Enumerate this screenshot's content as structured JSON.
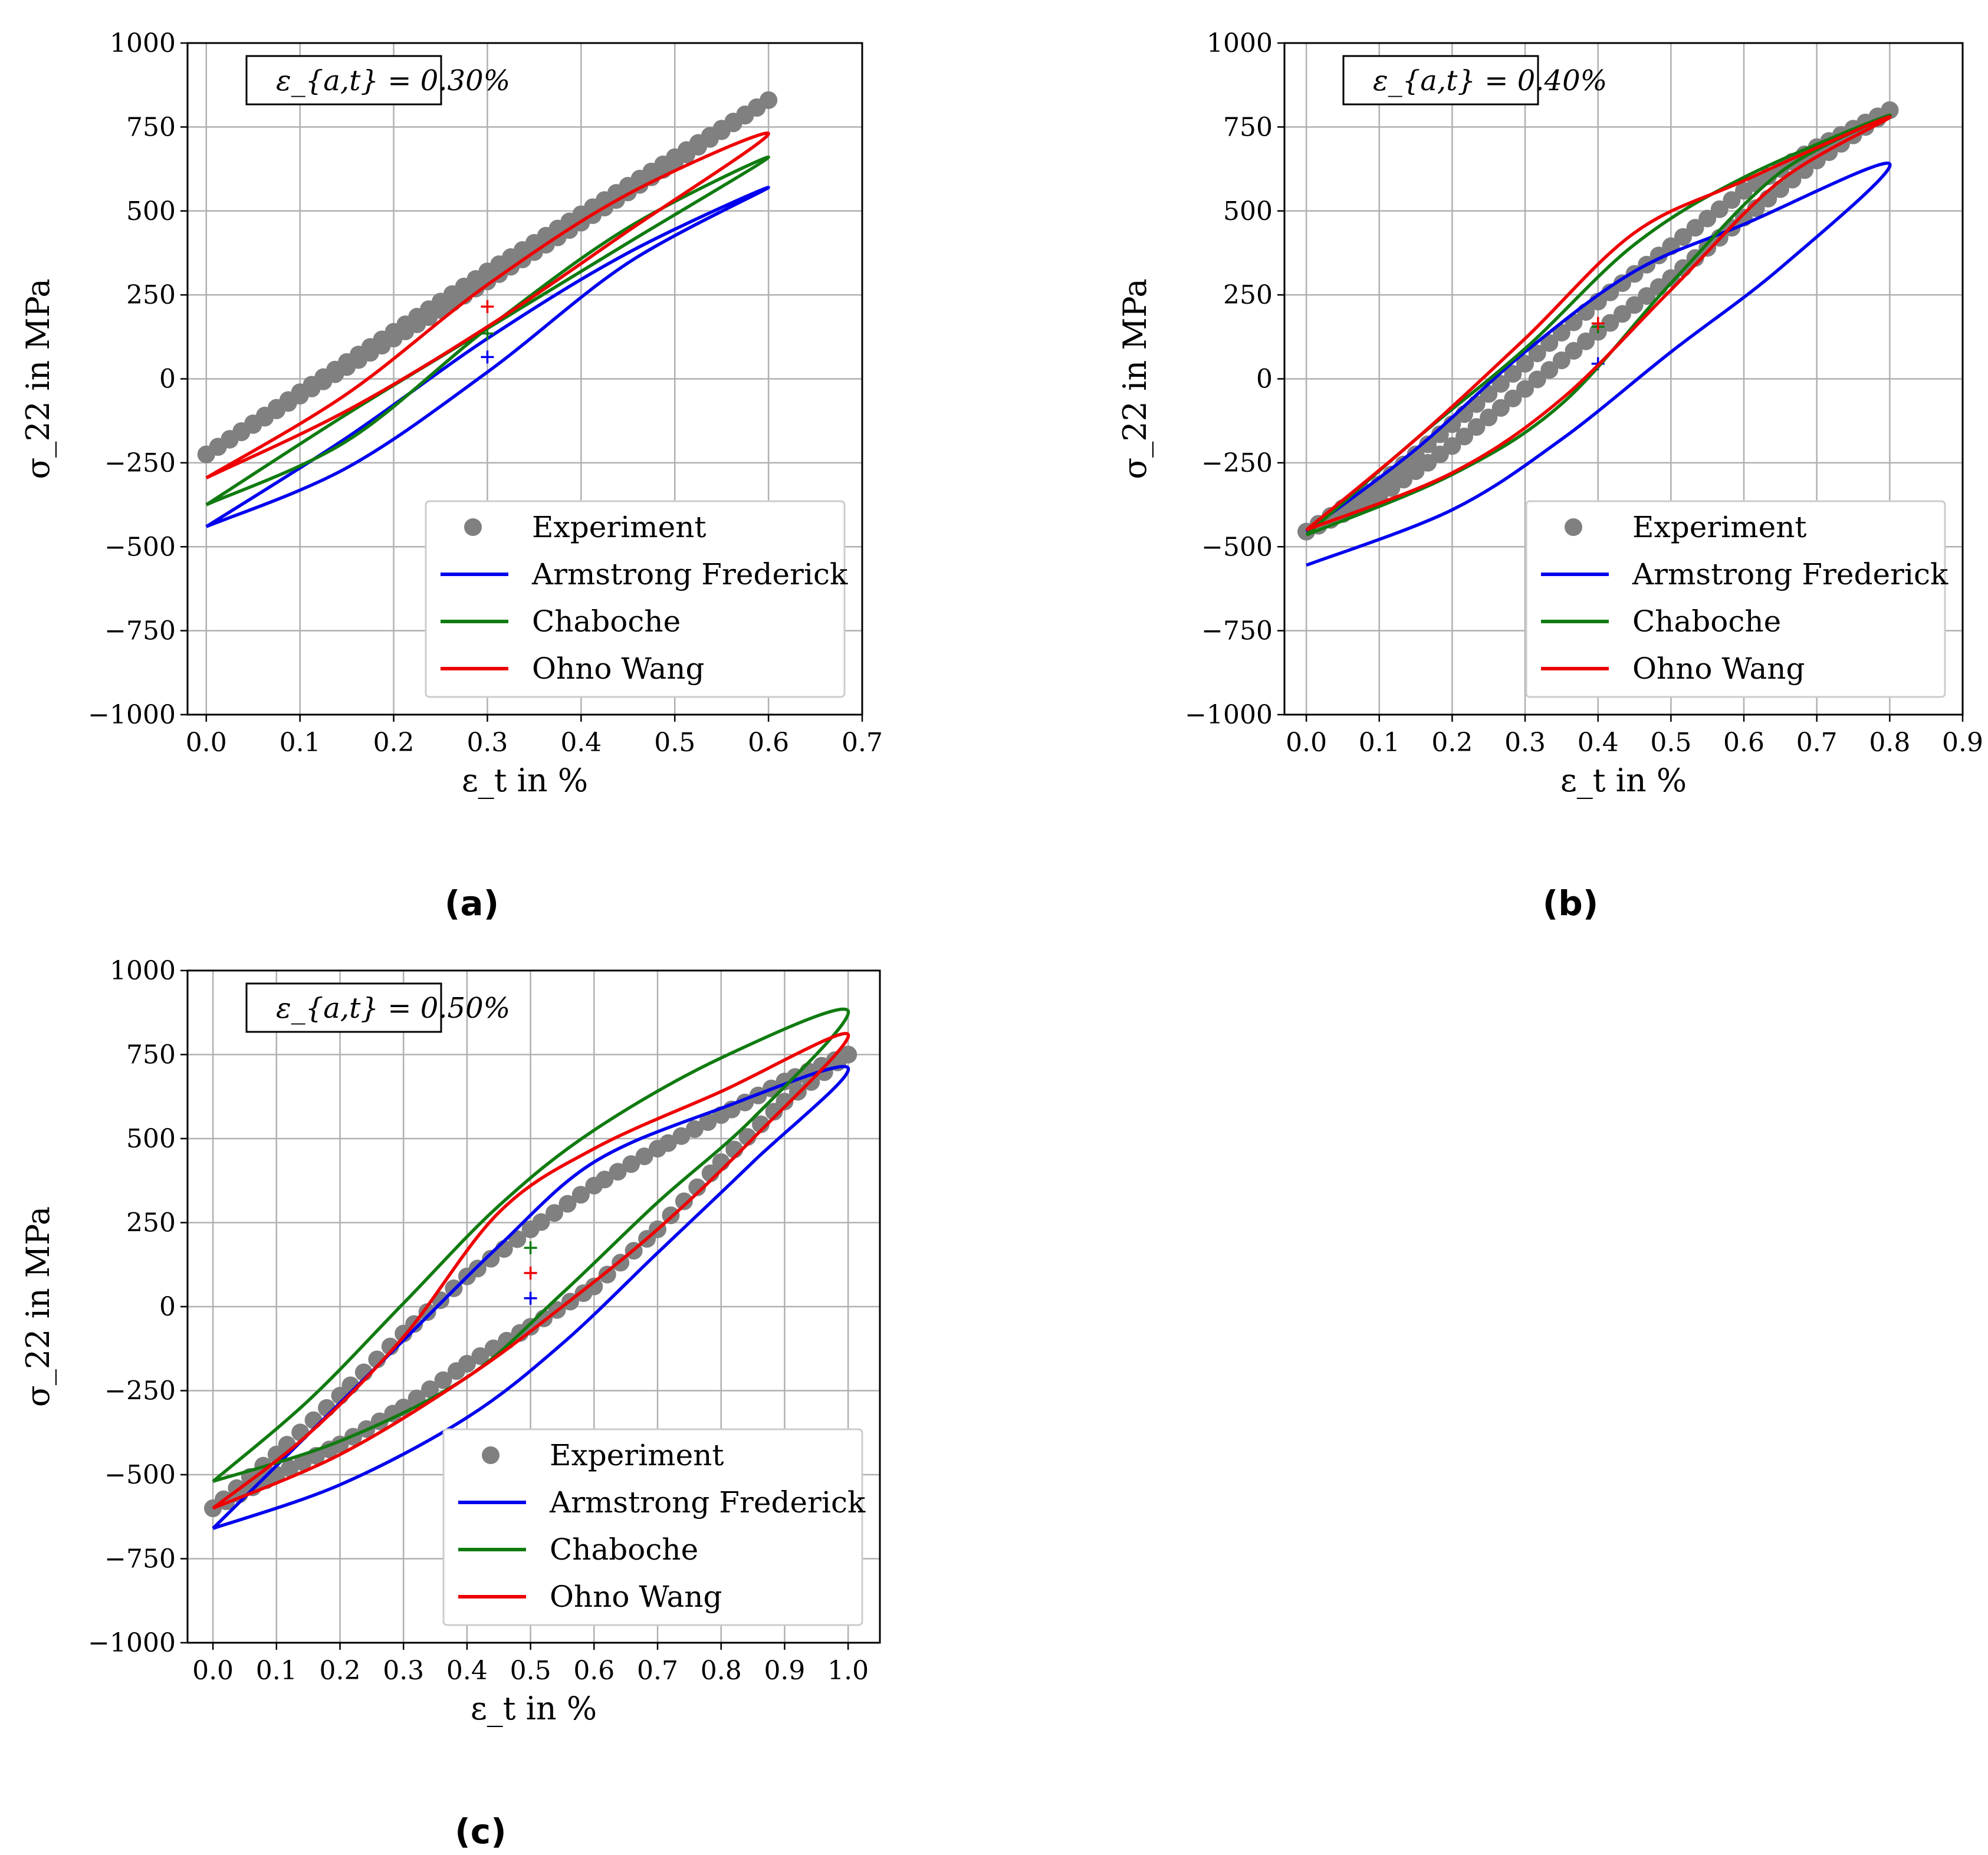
{
  "figure": {
    "legend_labels": [
      "Experiment",
      "Armstrong Frederick",
      "Chaboche",
      "Ohno Wang"
    ],
    "colors": {
      "experiment": "#808080",
      "armstrong_frederick": "#0000ee",
      "chaboche": "#107b10",
      "ohno_wang": "#ee0000",
      "grid": "#b0b0b0"
    }
  },
  "chart_data": [
    {
      "type": "line",
      "panel": "(a)",
      "caption": "(a)",
      "annotation": "ε_{a,t} = 0.30%",
      "xlabel": "ε_t in %",
      "ylabel": "σ_22 in MPa",
      "xlim": [
        -0.02,
        0.7
      ],
      "ylim": [
        -1000,
        1000
      ],
      "xticks": [
        "0.0",
        "0.1",
        "0.2",
        "0.3",
        "0.4",
        "0.5",
        "0.6",
        "0.7"
      ],
      "yticks": [
        "−1000",
        "−750",
        "−500",
        "−250",
        "0",
        "250",
        "500",
        "750",
        "1000"
      ],
      "legend_position": "lower right",
      "series": [
        {
          "name": "Experiment",
          "kind": "scatter",
          "loading_x": [
            0.0,
            0.1,
            0.2,
            0.3,
            0.4,
            0.5,
            0.6
          ],
          "loading_y": [
            -225,
            -50,
            120,
            290,
            465,
            645,
            830
          ],
          "unloading_x": [
            0.6,
            0.5,
            0.4,
            0.3,
            0.2,
            0.1,
            0.0
          ],
          "unloading_y": [
            830,
            660,
            490,
            320,
            140,
            -40,
            -225
          ]
        },
        {
          "name": "Armstrong Frederick",
          "kind": "loop",
          "x": [
            0.0,
            0.15,
            0.3,
            0.45,
            0.6,
            0.45,
            0.3,
            0.15,
            0.0
          ],
          "y": [
            -440,
            -265,
            20,
            345,
            570,
            375,
            120,
            -175,
            -440
          ],
          "midpoint_marker": {
            "x": 0.3,
            "y": 65
          }
        },
        {
          "name": "Chaboche",
          "kind": "loop",
          "x": [
            0.0,
            0.15,
            0.3,
            0.45,
            0.6,
            0.45,
            0.3,
            0.15,
            0.0
          ],
          "y": [
            -375,
            -105,
            150,
            405,
            660,
            450,
            150,
            -185,
            -375
          ],
          "midpoint_marker": {
            "x": 0.3,
            "y": 135
          }
        },
        {
          "name": "Ohno Wang",
          "kind": "loop",
          "x": [
            0.0,
            0.15,
            0.3,
            0.45,
            0.6,
            0.45,
            0.3,
            0.15,
            0.0
          ],
          "y": [
            -295,
            -95,
            155,
            440,
            730,
            550,
            280,
            -45,
            -295
          ],
          "midpoint_marker": {
            "x": 0.3,
            "y": 215
          }
        }
      ]
    },
    {
      "type": "line",
      "panel": "(b)",
      "caption": "(b)",
      "annotation": "ε_{a,t} = 0.40%",
      "xlabel": "ε_t in %",
      "ylabel": "σ_22 in MPa",
      "xlim": [
        -0.03,
        0.9
      ],
      "ylim": [
        -1000,
        1000
      ],
      "xticks": [
        "0.0",
        "0.1",
        "0.2",
        "0.3",
        "0.4",
        "0.5",
        "0.6",
        "0.7",
        "0.8",
        "0.9"
      ],
      "yticks": [
        "−1000",
        "−750",
        "−500",
        "−250",
        "0",
        "250",
        "500",
        "750",
        "1000"
      ],
      "legend_position": "lower right",
      "series": [
        {
          "name": "Experiment",
          "kind": "scatter",
          "loading_x": [
            0.0,
            0.1,
            0.2,
            0.3,
            0.4,
            0.5,
            0.6,
            0.7,
            0.8
          ],
          "loading_y": [
            -455,
            -350,
            -200,
            -30,
            140,
            300,
            480,
            650,
            800
          ],
          "unloading_x": [
            0.8,
            0.7,
            0.6,
            0.5,
            0.4,
            0.3,
            0.2,
            0.1,
            0.0
          ],
          "unloading_y": [
            800,
            690,
            560,
            395,
            230,
            45,
            -135,
            -315,
            -455
          ]
        },
        {
          "name": "Armstrong Frederick",
          "kind": "loop",
          "x": [
            0.0,
            0.2,
            0.35,
            0.5,
            0.65,
            0.8,
            0.6,
            0.45,
            0.3,
            0.15,
            0.0
          ],
          "y": [
            -555,
            -390,
            -180,
            80,
            330,
            640,
            460,
            320,
            80,
            -210,
            -455
          ],
          "midpoint_marker": {
            "x": 0.4,
            "y": 45
          }
        },
        {
          "name": "Chaboche",
          "kind": "loop",
          "x": [
            0.0,
            0.2,
            0.35,
            0.5,
            0.65,
            0.8,
            0.6,
            0.45,
            0.3,
            0.15,
            0.0
          ],
          "y": [
            -465,
            -285,
            -75,
            285,
            615,
            785,
            600,
            400,
            90,
            -180,
            -465
          ],
          "midpoint_marker": {
            "x": 0.4,
            "y": 155
          }
        },
        {
          "name": "Ohno Wang",
          "kind": "loop",
          "x": [
            0.0,
            0.2,
            0.35,
            0.5,
            0.65,
            0.8,
            0.6,
            0.45,
            0.3,
            0.15,
            0.0
          ],
          "y": [
            -450,
            -280,
            -60,
            265,
            590,
            780,
            590,
            435,
            120,
            -180,
            -450
          ],
          "midpoint_marker": {
            "x": 0.4,
            "y": 165
          }
        }
      ]
    },
    {
      "type": "line",
      "panel": "(c)",
      "caption": "(c)",
      "annotation": "ε_{a,t} = 0.50%",
      "xlabel": "ε_t in %",
      "ylabel": "σ_22 in MPa",
      "xlim": [
        -0.04,
        1.05
      ],
      "ylim": [
        -1000,
        1000
      ],
      "xticks": [
        "0.0",
        "0.1",
        "0.2",
        "0.3",
        "0.4",
        "0.5",
        "0.6",
        "0.7",
        "0.8",
        "0.9",
        "1.0"
      ],
      "yticks": [
        "−1000",
        "−750",
        "−500",
        "−250",
        "0",
        "250",
        "500",
        "750",
        "1000"
      ],
      "legend_position": "lower right",
      "series": [
        {
          "name": "Experiment",
          "kind": "scatter",
          "loading_x": [
            0.0,
            0.1,
            0.2,
            0.3,
            0.4,
            0.5,
            0.6,
            0.7,
            0.8,
            0.9,
            1.0
          ],
          "loading_y": [
            -600,
            -500,
            -410,
            -300,
            -170,
            -60,
            60,
            230,
            430,
            610,
            750
          ],
          "unloading_x": [
            1.0,
            0.9,
            0.8,
            0.7,
            0.6,
            0.5,
            0.4,
            0.3,
            0.2,
            0.1,
            0.0
          ],
          "unloading_y": [
            750,
            670,
            570,
            470,
            360,
            230,
            90,
            -80,
            -265,
            -440,
            -600
          ]
        },
        {
          "name": "Armstrong Frederick",
          "kind": "loop",
          "x": [
            0.0,
            0.2,
            0.4,
            0.55,
            0.7,
            0.85,
            1.0,
            0.8,
            0.6,
            0.45,
            0.3,
            0.15,
            0.0
          ],
          "y": [
            -660,
            -530,
            -330,
            -110,
            160,
            430,
            710,
            590,
            430,
            180,
            -100,
            -380,
            -660
          ],
          "midpoint_marker": {
            "x": 0.5,
            "y": 25
          }
        },
        {
          "name": "Chaboche",
          "kind": "loop",
          "x": [
            0.0,
            0.2,
            0.4,
            0.55,
            0.7,
            0.85,
            1.0,
            0.8,
            0.6,
            0.45,
            0.3,
            0.15,
            0.0
          ],
          "y": [
            -520,
            -400,
            -210,
            40,
            310,
            560,
            880,
            740,
            525,
            300,
            10,
            -280,
            -520
          ],
          "midpoint_marker": {
            "x": 0.5,
            "y": 175
          }
        },
        {
          "name": "Ohno Wang",
          "kind": "loop",
          "x": [
            0.0,
            0.2,
            0.4,
            0.55,
            0.7,
            0.85,
            1.0,
            0.8,
            0.6,
            0.45,
            0.3,
            0.15,
            0.0
          ],
          "y": [
            -600,
            -440,
            -210,
            0,
            230,
            500,
            810,
            640,
            470,
            280,
            -90,
            -380,
            -600
          ],
          "midpoint_marker": {
            "x": 0.5,
            "y": 100
          }
        }
      ]
    }
  ]
}
